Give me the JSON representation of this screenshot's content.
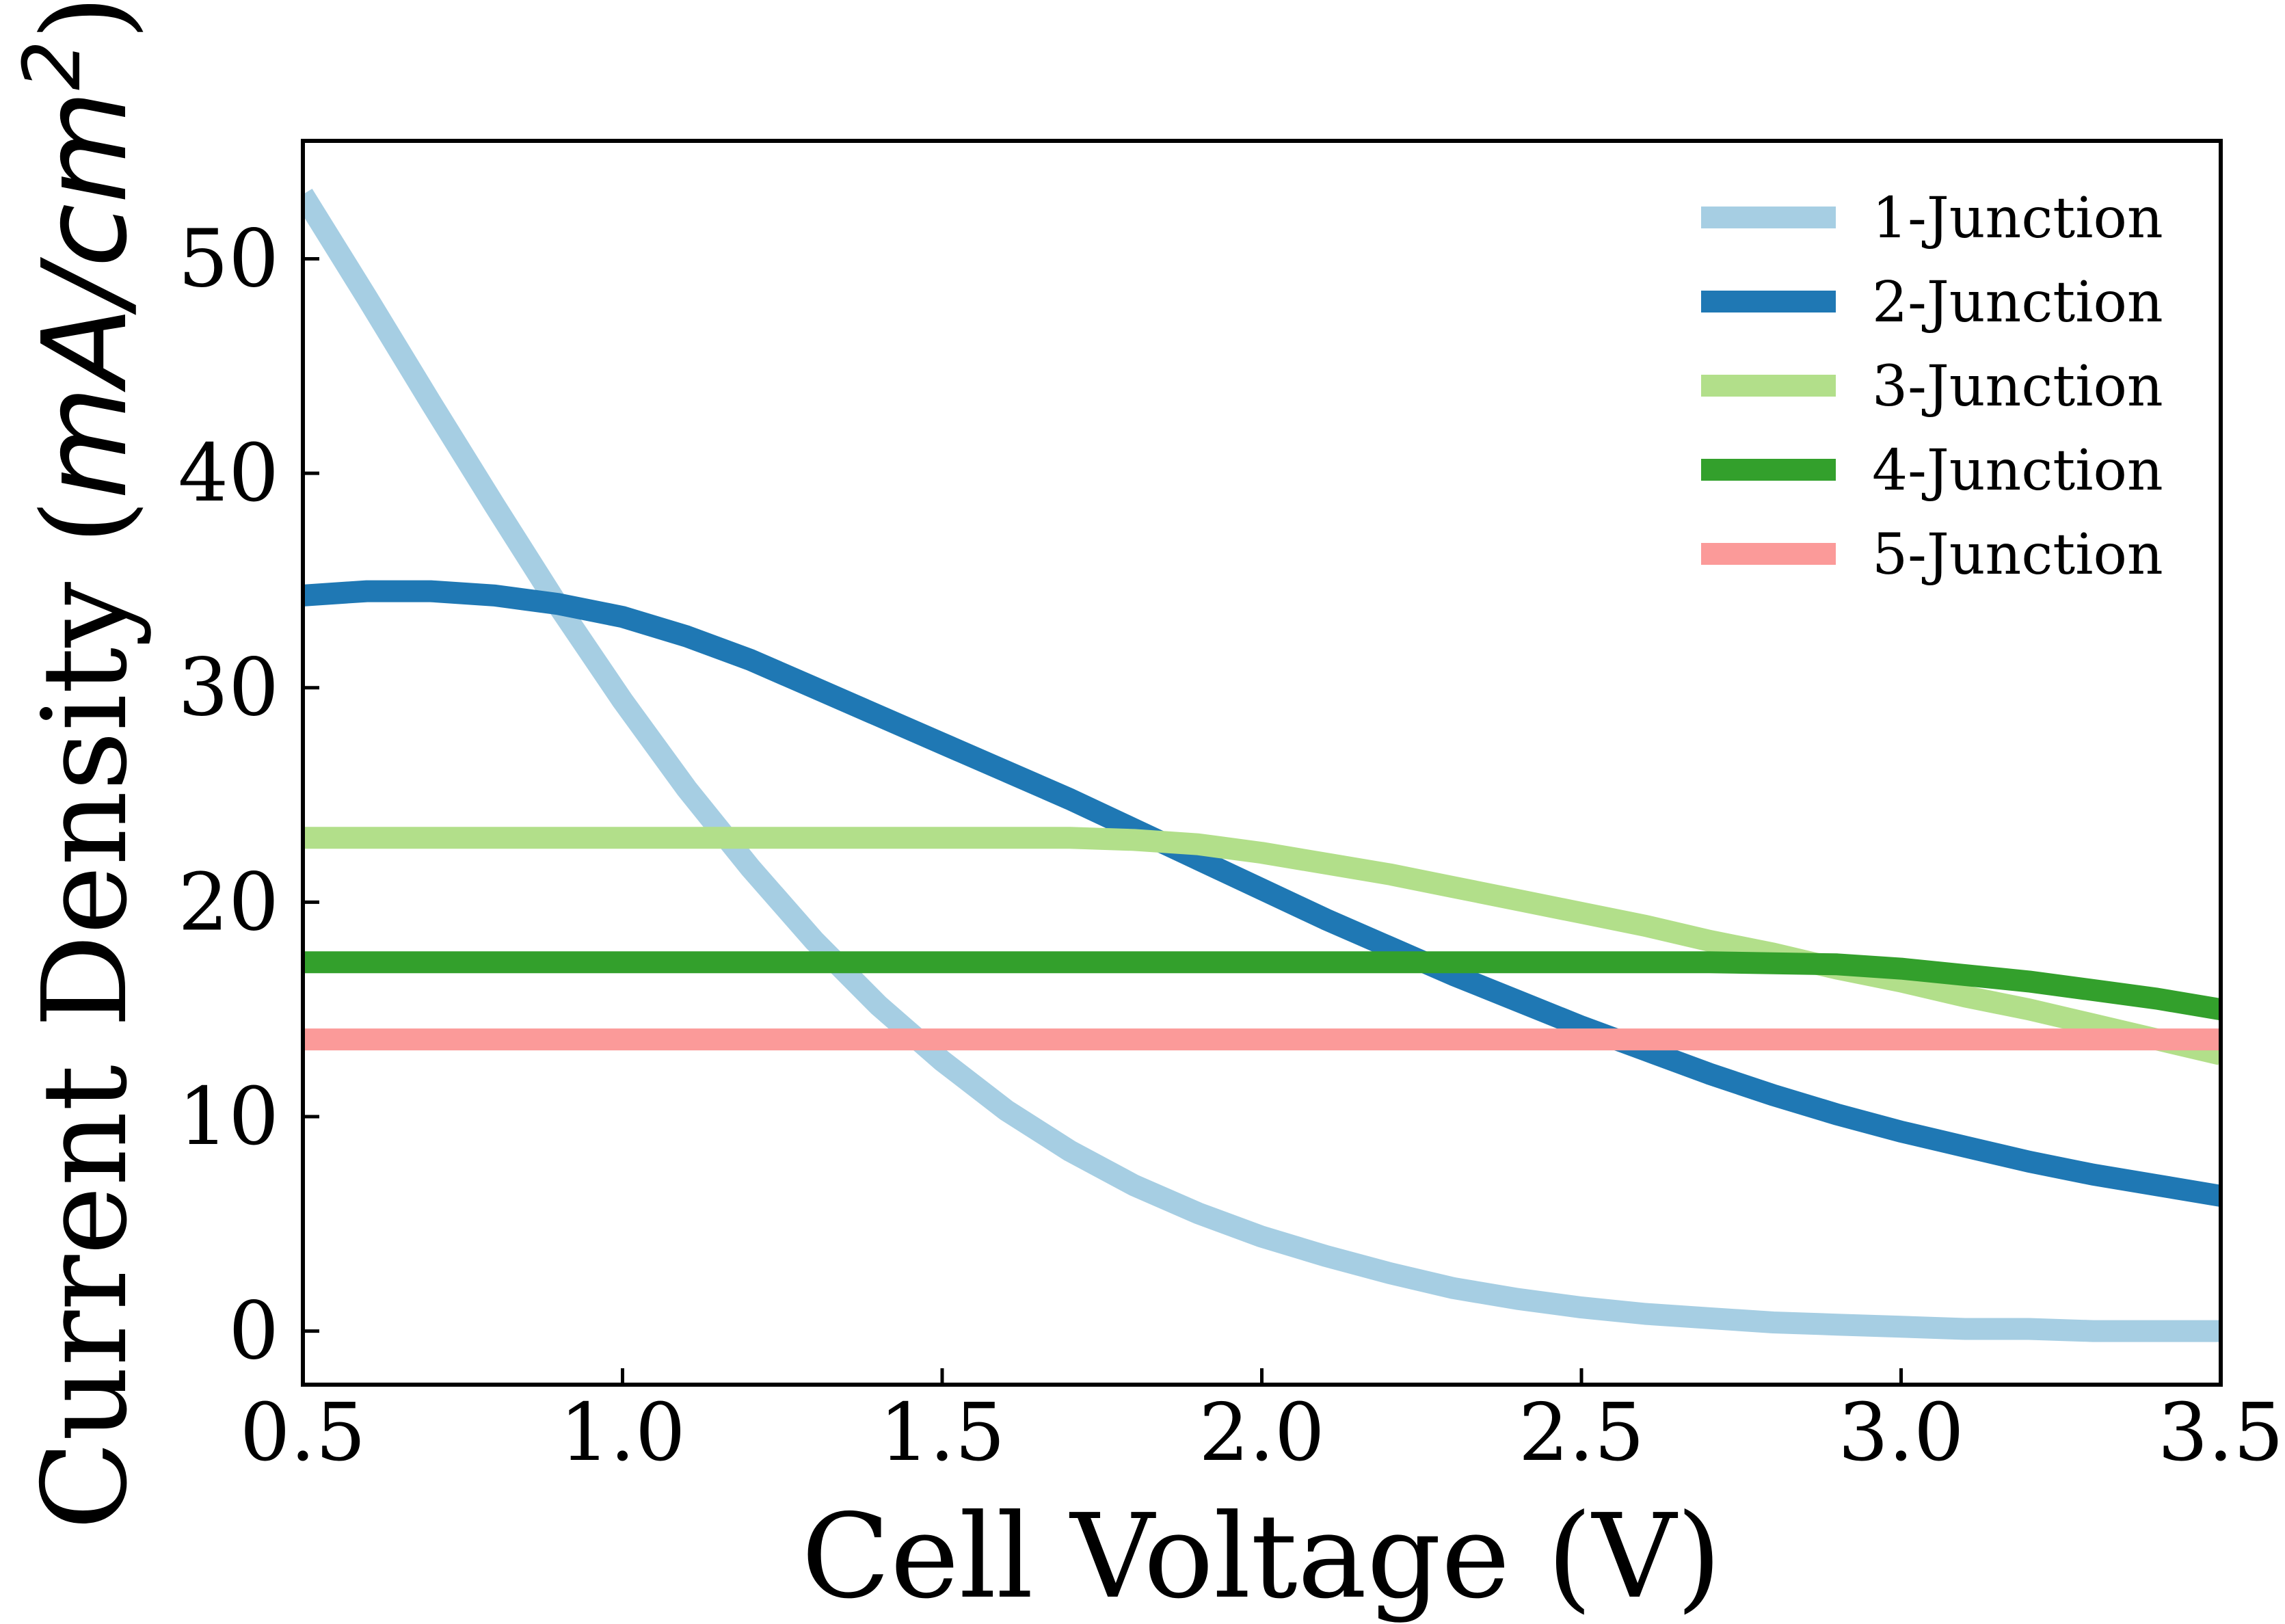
{
  "chart_data": {
    "type": "line",
    "xlabel": "Cell Voltage (V)",
    "ylabel_prefix": "Current Density (",
    "ylabel_unit_base": "mA/cm",
    "ylabel_unit_exp": "2",
    "ylabel_suffix": ")",
    "xlim": [
      0.5,
      3.5
    ],
    "ylim": [
      -2.5,
      55.5
    ],
    "xticks": [
      0.5,
      1.0,
      1.5,
      2.0,
      2.5,
      3.0,
      3.5
    ],
    "xtick_labels": [
      "0.5",
      "1.0",
      "1.5",
      "2.0",
      "2.5",
      "3.0",
      "3.5"
    ],
    "yticks": [
      0,
      10,
      20,
      30,
      40,
      50
    ],
    "ytick_labels": [
      "0",
      "10",
      "20",
      "30",
      "40",
      "50"
    ],
    "grid": false,
    "legend_position": "top-right",
    "series": [
      {
        "name": "1-Junction",
        "color": "#a6cee3",
        "x": [
          0.5,
          0.6,
          0.7,
          0.8,
          0.9,
          1.0,
          1.1,
          1.2,
          1.3,
          1.4,
          1.5,
          1.6,
          1.7,
          1.8,
          1.9,
          2.0,
          2.1,
          2.2,
          2.3,
          2.4,
          2.5,
          2.6,
          2.7,
          2.8,
          2.9,
          3.0,
          3.1,
          3.2,
          3.3,
          3.4,
          3.5
        ],
        "y": [
          53.0,
          48.2,
          43.3,
          38.5,
          33.8,
          29.4,
          25.3,
          21.6,
          18.2,
          15.2,
          12.6,
          10.3,
          8.4,
          6.8,
          5.5,
          4.4,
          3.5,
          2.7,
          2.0,
          1.5,
          1.1,
          0.8,
          0.6,
          0.4,
          0.3,
          0.2,
          0.1,
          0.1,
          0.0,
          0.0,
          0.0
        ]
      },
      {
        "name": "2-Junction",
        "color": "#1f78b4",
        "x": [
          0.5,
          0.6,
          0.7,
          0.8,
          0.9,
          1.0,
          1.1,
          1.2,
          1.3,
          1.4,
          1.5,
          1.6,
          1.7,
          1.8,
          1.9,
          2.0,
          2.1,
          2.2,
          2.3,
          2.4,
          2.5,
          2.6,
          2.7,
          2.8,
          2.9,
          3.0,
          3.1,
          3.2,
          3.3,
          3.4,
          3.5
        ],
        "y": [
          34.3,
          34.5,
          34.5,
          34.3,
          33.9,
          33.3,
          32.4,
          31.3,
          30.0,
          28.7,
          27.4,
          26.1,
          24.8,
          23.4,
          22.0,
          20.6,
          19.2,
          17.9,
          16.6,
          15.4,
          14.2,
          13.1,
          12.0,
          11.0,
          10.1,
          9.3,
          8.6,
          7.9,
          7.3,
          6.8,
          6.3
        ]
      },
      {
        "name": "3-Junction",
        "color": "#b2df8a",
        "x": [
          0.5,
          0.6,
          0.7,
          0.8,
          0.9,
          1.0,
          1.1,
          1.2,
          1.3,
          1.4,
          1.5,
          1.6,
          1.7,
          1.8,
          1.9,
          2.0,
          2.1,
          2.2,
          2.3,
          2.4,
          2.5,
          2.6,
          2.7,
          2.8,
          2.9,
          3.0,
          3.1,
          3.2,
          3.3,
          3.4,
          3.5
        ],
        "y": [
          23.0,
          23.0,
          23.0,
          23.0,
          23.0,
          23.0,
          23.0,
          23.0,
          23.0,
          23.0,
          23.0,
          23.0,
          23.0,
          22.9,
          22.7,
          22.3,
          21.8,
          21.3,
          20.7,
          20.1,
          19.5,
          18.9,
          18.2,
          17.6,
          16.9,
          16.3,
          15.6,
          15.0,
          14.3,
          13.6,
          12.9
        ]
      },
      {
        "name": "4-Junction",
        "color": "#33a02c",
        "x": [
          0.5,
          0.7,
          0.9,
          1.1,
          1.3,
          1.5,
          1.7,
          1.9,
          2.1,
          2.3,
          2.5,
          2.7,
          2.9,
          3.0,
          3.1,
          3.2,
          3.3,
          3.4,
          3.5
        ],
        "y": [
          17.2,
          17.2,
          17.2,
          17.2,
          17.2,
          17.2,
          17.2,
          17.2,
          17.2,
          17.2,
          17.2,
          17.2,
          17.1,
          16.9,
          16.6,
          16.3,
          15.9,
          15.5,
          15.0
        ]
      },
      {
        "name": "5-Junction",
        "color": "#fb9a99",
        "x": [
          0.5,
          1.0,
          1.5,
          2.0,
          2.5,
          3.0,
          3.5
        ],
        "y": [
          13.6,
          13.6,
          13.6,
          13.6,
          13.6,
          13.6,
          13.6
        ]
      }
    ]
  }
}
